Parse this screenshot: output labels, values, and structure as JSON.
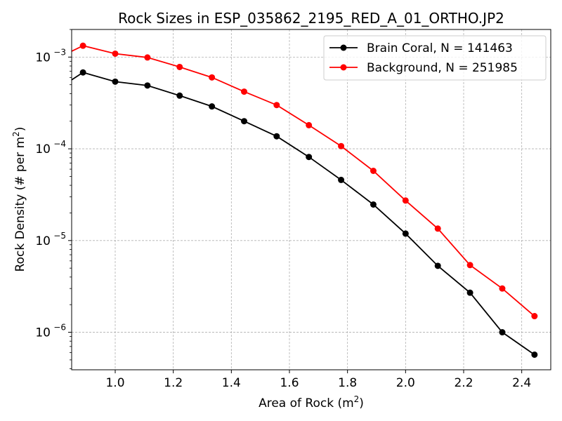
{
  "chart_data": {
    "type": "line",
    "title": "Rock Sizes in ESP_035862_2195_RED_A_01_ORTHO.JP2",
    "xlabel": "Area of Rock (m",
    "xlabel_sup": "2",
    "xlabel_end": ")",
    "ylabel": "Rock Density (# per m",
    "ylabel_sup": "2",
    "ylabel_end": ")",
    "yscale": "log",
    "xlim": [
      0.85,
      2.5
    ],
    "ylim": [
      3.9e-07,
      0.002
    ],
    "grid": true,
    "legend_position": "top-right",
    "x_ticks": [
      "1.0",
      "1.2",
      "1.4",
      "1.6",
      "1.8",
      "2.0",
      "2.2",
      "2.4"
    ],
    "y_ticks": [
      {
        "base": "10",
        "exp": "−3"
      },
      {
        "base": "10",
        "exp": "−4"
      },
      {
        "base": "10",
        "exp": "−5"
      },
      {
        "base": "10",
        "exp": "−6"
      }
    ],
    "x": [
      0.778,
      0.889,
      1.0,
      1.111,
      1.222,
      1.333,
      1.444,
      1.556,
      1.667,
      1.778,
      1.889,
      2.0,
      2.111,
      2.222,
      2.333,
      2.444
    ],
    "series": [
      {
        "name": "Brain Coral, N = 141463",
        "color": "#000000",
        "values": [
          0.0004,
          0.00068,
          0.00054,
          0.00049,
          0.00038,
          0.00029,
          0.0002,
          0.000137,
          8.15e-05,
          4.58e-05,
          2.47e-05,
          1.19e-05,
          5.3e-06,
          2.7e-06,
          1e-06,
          5.7e-07
        ]
      },
      {
        "name": "Background, N = 251985",
        "color": "#ff0000",
        "values": [
          0.0009,
          0.00133,
          0.00109,
          0.00099,
          0.00078,
          0.0006,
          0.00042,
          0.0003,
          0.000181,
          0.000107,
          5.75e-05,
          2.73e-05,
          1.35e-05,
          5.4e-06,
          3e-06,
          1.5e-06
        ]
      }
    ]
  }
}
